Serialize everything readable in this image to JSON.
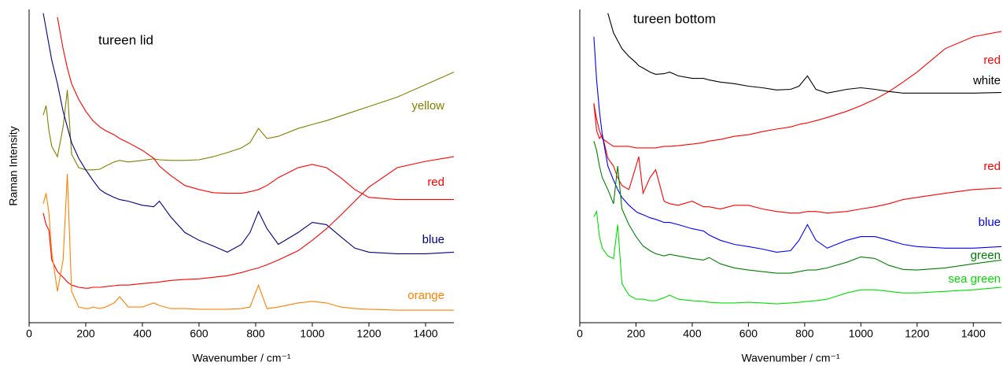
{
  "chart_data": [
    {
      "type": "line",
      "title": "tureen lid",
      "xlabel": "Wavenumber / cm⁻¹",
      "ylabel": "Raman Intensity",
      "xlim": [
        0,
        1500
      ],
      "ylim": [
        0,
        100
      ],
      "xticks": [
        0,
        200,
        400,
        600,
        800,
        1000,
        1200,
        1400
      ],
      "x": [
        50,
        60,
        70,
        80,
        100,
        120,
        135,
        150,
        175,
        200,
        210,
        225,
        250,
        270,
        300,
        320,
        350,
        400,
        440,
        460,
        500,
        550,
        600,
        650,
        700,
        750,
        780,
        810,
        840,
        880,
        950,
        1000,
        1050,
        1100,
        1150,
        1200,
        1300,
        1400,
        1500
      ],
      "series": [
        {
          "name": "yellow",
          "color": "#808000",
          "values": [
            66.3,
            69.3,
            61.3,
            56.3,
            53,
            62.5,
            74.3,
            53.8,
            49.5,
            48.8,
            48.8,
            48.8,
            49,
            50,
            51.3,
            51.8,
            51.3,
            51.8,
            52.3,
            52,
            51.8,
            51.8,
            52,
            53,
            54.3,
            55.8,
            57.5,
            62,
            58.8,
            59.5,
            62,
            63.3,
            64.5,
            66,
            67.5,
            69,
            72,
            76,
            80
          ]
        },
        {
          "name": "red",
          "color": "#ff0000",
          "values": [
            null,
            null,
            null,
            null,
            97.5,
            87.5,
            81.3,
            76.3,
            71.3,
            67.5,
            66.3,
            64.5,
            62.5,
            61.3,
            60,
            58.8,
            57.5,
            55,
            52.5,
            50,
            47,
            43.8,
            42.5,
            41.5,
            41.3,
            41.3,
            41.8,
            42.5,
            43.8,
            46.3,
            49.5,
            50.5,
            49.5,
            46.3,
            42.5,
            40,
            39.3,
            39.3,
            39.3
          ]
        },
        {
          "name": "blue",
          "color": "#000080",
          "values": [
            98.8,
            93.8,
            88.8,
            83.8,
            76.3,
            67.5,
            62.5,
            57.5,
            52.5,
            48.8,
            47.5,
            45.5,
            42.5,
            41.3,
            40,
            39.3,
            38.8,
            37.5,
            37,
            38.8,
            33.8,
            28.8,
            26.3,
            24.5,
            22.5,
            25,
            28.8,
            35.5,
            30,
            25,
            28.8,
            32,
            31.3,
            27.5,
            23.8,
            22.5,
            22,
            22,
            22.5
          ]
        },
        {
          "color": "#ff0000",
          "values": [
            35,
            31.3,
            29.5,
            20,
            16.3,
            14.5,
            13,
            12,
            11.3,
            11,
            11,
            11.3,
            11.3,
            11.5,
            11.8,
            12,
            12,
            12.5,
            12.8,
            13,
            13.5,
            13.8,
            14,
            14.5,
            15,
            16,
            16.8,
            17.5,
            18.5,
            20,
            23,
            26.3,
            30,
            34.3,
            38.8,
            43.3,
            49.5,
            51.5,
            53
          ]
        },
        {
          "name": "orange",
          "color": "#ff8000",
          "values": [
            38,
            41.3,
            35,
            22.5,
            10,
            20,
            47.5,
            10,
            5,
            4.5,
            4.5,
            5,
            4.5,
            5,
            6.3,
            8.3,
            5,
            5,
            6.3,
            5.5,
            4.5,
            4.5,
            4.3,
            4.3,
            4.3,
            4.5,
            5,
            12,
            4.5,
            5,
            6.3,
            6.8,
            6.3,
            5,
            4.5,
            4.3,
            4,
            4,
            4
          ]
        }
      ]
    },
    {
      "type": "line",
      "title": "tureen bottom",
      "xlabel": "Wavenumber / cm⁻¹",
      "xlim": [
        0,
        1500
      ],
      "ylim": [
        0,
        100
      ],
      "xticks": [
        0,
        200,
        400,
        600,
        800,
        1000,
        1200,
        1400
      ],
      "x": [
        50,
        60,
        70,
        80,
        100,
        120,
        135,
        150,
        175,
        200,
        210,
        225,
        250,
        270,
        300,
        320,
        350,
        400,
        440,
        460,
        500,
        550,
        600,
        650,
        700,
        750,
        780,
        810,
        840,
        880,
        950,
        1000,
        1050,
        1100,
        1150,
        1200,
        1300,
        1400,
        1500
      ],
      "series": [
        {
          "name": "red",
          "color": "#ff0000",
          "values": [
            70,
            65,
            61.3,
            58.8,
            57.5,
            56.3,
            56.3,
            56.3,
            56.3,
            55.8,
            55.8,
            55.8,
            55.8,
            55.8,
            56.3,
            56.3,
            56.5,
            57,
            57.5,
            58,
            58.5,
            59.5,
            60,
            61,
            61.8,
            62.5,
            63.3,
            63.8,
            64.5,
            65.5,
            67.5,
            69.3,
            71.3,
            73.8,
            76.8,
            80,
            87.5,
            91.3,
            93
          ]
        },
        {
          "name": "white",
          "color": "#000000",
          "values": [
            null,
            null,
            null,
            null,
            98.8,
            92.5,
            90,
            87.5,
            85,
            83,
            82,
            81.3,
            80,
            79.3,
            79.5,
            80,
            78.8,
            78,
            78,
            77.5,
            76.8,
            76.3,
            75.5,
            75,
            74.3,
            74.5,
            75.5,
            78.8,
            74.5,
            73.3,
            74.5,
            75,
            74.5,
            73.8,
            73.3,
            73.3,
            73.3,
            73.3,
            73.5
          ]
        },
        {
          "name": "red",
          "color": "#ff0000",
          "values": [
            70,
            61.3,
            58.8,
            60,
            52.5,
            50,
            46.3,
            43.8,
            42.5,
            50,
            53,
            41.3,
            46.3,
            48.8,
            38.8,
            38,
            37.5,
            38.8,
            37,
            37,
            36.3,
            37.5,
            37.5,
            36.3,
            35.5,
            35,
            35,
            35.5,
            35.5,
            35,
            35.5,
            36.3,
            37,
            38,
            39.3,
            40,
            41.3,
            42.5,
            43
          ]
        },
        {
          "name": "blue",
          "color": "#0000ff",
          "values": [
            91.3,
            77.5,
            67.5,
            60,
            50,
            45.5,
            42.5,
            40,
            37.5,
            35.5,
            35,
            34.5,
            33.5,
            33,
            32,
            32,
            31.3,
            30,
            29.3,
            28,
            26.3,
            25,
            24.3,
            23.5,
            22.5,
            23,
            26.3,
            31.3,
            26.3,
            23.8,
            26.3,
            27.5,
            27.5,
            26.3,
            25,
            24.3,
            23.8,
            23.8,
            24.3
          ]
        },
        {
          "name": "green",
          "color": "#008000",
          "values": [
            58,
            55,
            50,
            46.3,
            42.5,
            38,
            50,
            36.3,
            31.3,
            27.5,
            26.3,
            24.5,
            23,
            22,
            21.3,
            21.8,
            21.3,
            20.5,
            20,
            20.8,
            18.8,
            17.5,
            16.8,
            16.3,
            15.8,
            15.8,
            16.3,
            16.8,
            16.8,
            17.5,
            19.3,
            21,
            20.5,
            18.3,
            17,
            16.8,
            17.5,
            18.8,
            20
          ]
        },
        {
          "name": "sea green",
          "color": "#00e000",
          "values": [
            33.8,
            35.5,
            27.5,
            23.8,
            21.3,
            20.5,
            31.3,
            12.5,
            8.8,
            7.5,
            7.5,
            7.5,
            7,
            7,
            8,
            8.8,
            7.5,
            7,
            6.8,
            6.5,
            6.3,
            6.3,
            6.5,
            6.3,
            6,
            6.3,
            6.5,
            6.8,
            7,
            7.5,
            9.5,
            10.5,
            10.5,
            10,
            9.5,
            9.5,
            10,
            10.5,
            11.3
          ]
        }
      ]
    }
  ]
}
